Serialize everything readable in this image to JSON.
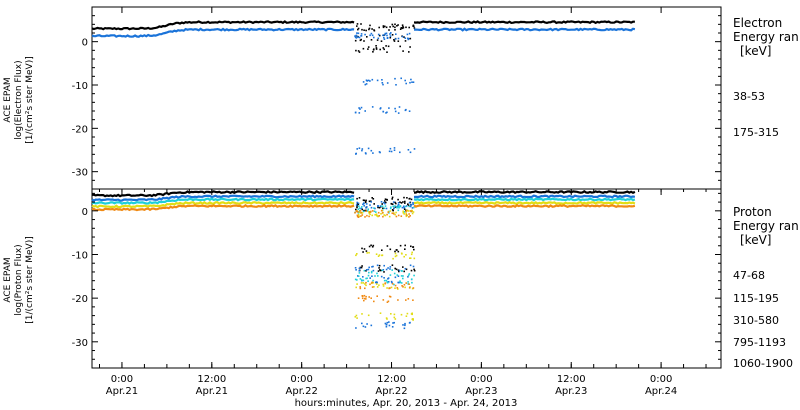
{
  "chart_data": {
    "type": "scatter",
    "xlabel": "hours:minutes, Apr. 20, 2013 - Apr. 24, 2013",
    "x_range": [
      20,
      104
    ],
    "x_ticks": [
      {
        "x": 24,
        "time": "0:00",
        "date": "Apr.21"
      },
      {
        "x": 36,
        "time": "12:00",
        "date": "Apr.21"
      },
      {
        "x": 48,
        "time": "0:00",
        "date": "Apr.22"
      },
      {
        "x": 60,
        "time": "12:00",
        "date": "Apr.22"
      },
      {
        "x": 72,
        "time": "0:00",
        "date": "Apr.23"
      },
      {
        "x": 84,
        "time": "12:00",
        "date": "Apr.23"
      },
      {
        "x": 96,
        "time": "0:00",
        "date": "Apr.24"
      }
    ],
    "panels": [
      {
        "id": "electron",
        "ylabel_lines": [
          "ACE EPAM",
          "log(Electron Flux)",
          "[1/(cm²s ster MeV)]"
        ],
        "ylim": [
          -34,
          8
        ],
        "yticks": [
          0,
          -10,
          -20,
          -30
        ],
        "legend_title": [
          "Electron",
          "Energy ran",
          "[keV]"
        ],
        "series": [
          {
            "name": "38-53",
            "color": "#000000",
            "base": 3.0,
            "bump": 1.5,
            "gap_levels": [
              3.5,
              1.0,
              -1.5
            ]
          },
          {
            "name": "175-315",
            "color": "#1a73d9",
            "base": 1.3,
            "bump": 1.5,
            "gap_levels": [
              1.5,
              -15.5,
              -9,
              -25
            ]
          }
        ]
      },
      {
        "id": "proton",
        "ylabel_lines": [
          "ACE EPAM",
          "log(Proton Flux)",
          "[1/(cm²s ster MeV)]"
        ],
        "ylim": [
          -36,
          5
        ],
        "yticks": [
          0,
          -10,
          -20,
          -30
        ],
        "legend_title": [
          "Proton",
          "Energy ran",
          "[keV]"
        ],
        "series": [
          {
            "name": "47-68",
            "color": "#000000",
            "base": 3.5,
            "bump": 0.8,
            "gap_levels": [
              2.5,
              1.0,
              -8.5,
              -13
            ]
          },
          {
            "name": "115-195",
            "color": "#1a73d9",
            "base": 2.5,
            "bump": 0.8,
            "gap_levels": [
              1.5,
              -15.5,
              -13,
              -26
            ]
          },
          {
            "name": "310-580",
            "color": "#1fcfd8",
            "base": 1.8,
            "bump": 0.8,
            "gap_levels": [
              0.5,
              -16,
              -14
            ]
          },
          {
            "name": "795-1193",
            "color": "#e2dd14",
            "base": 1.0,
            "bump": 0.8,
            "gap_levels": [
              -0.5,
              -10,
              -17,
              -24
            ]
          },
          {
            "name": "1060-1900",
            "color": "#f08a14",
            "base": 0.3,
            "bump": 0.8,
            "gap_levels": [
              -0.5,
              -17,
              -20
            ]
          }
        ]
      }
    ],
    "data_gap": [
      55,
      63
    ],
    "data_end": 92.5,
    "bump_center": 30
  }
}
